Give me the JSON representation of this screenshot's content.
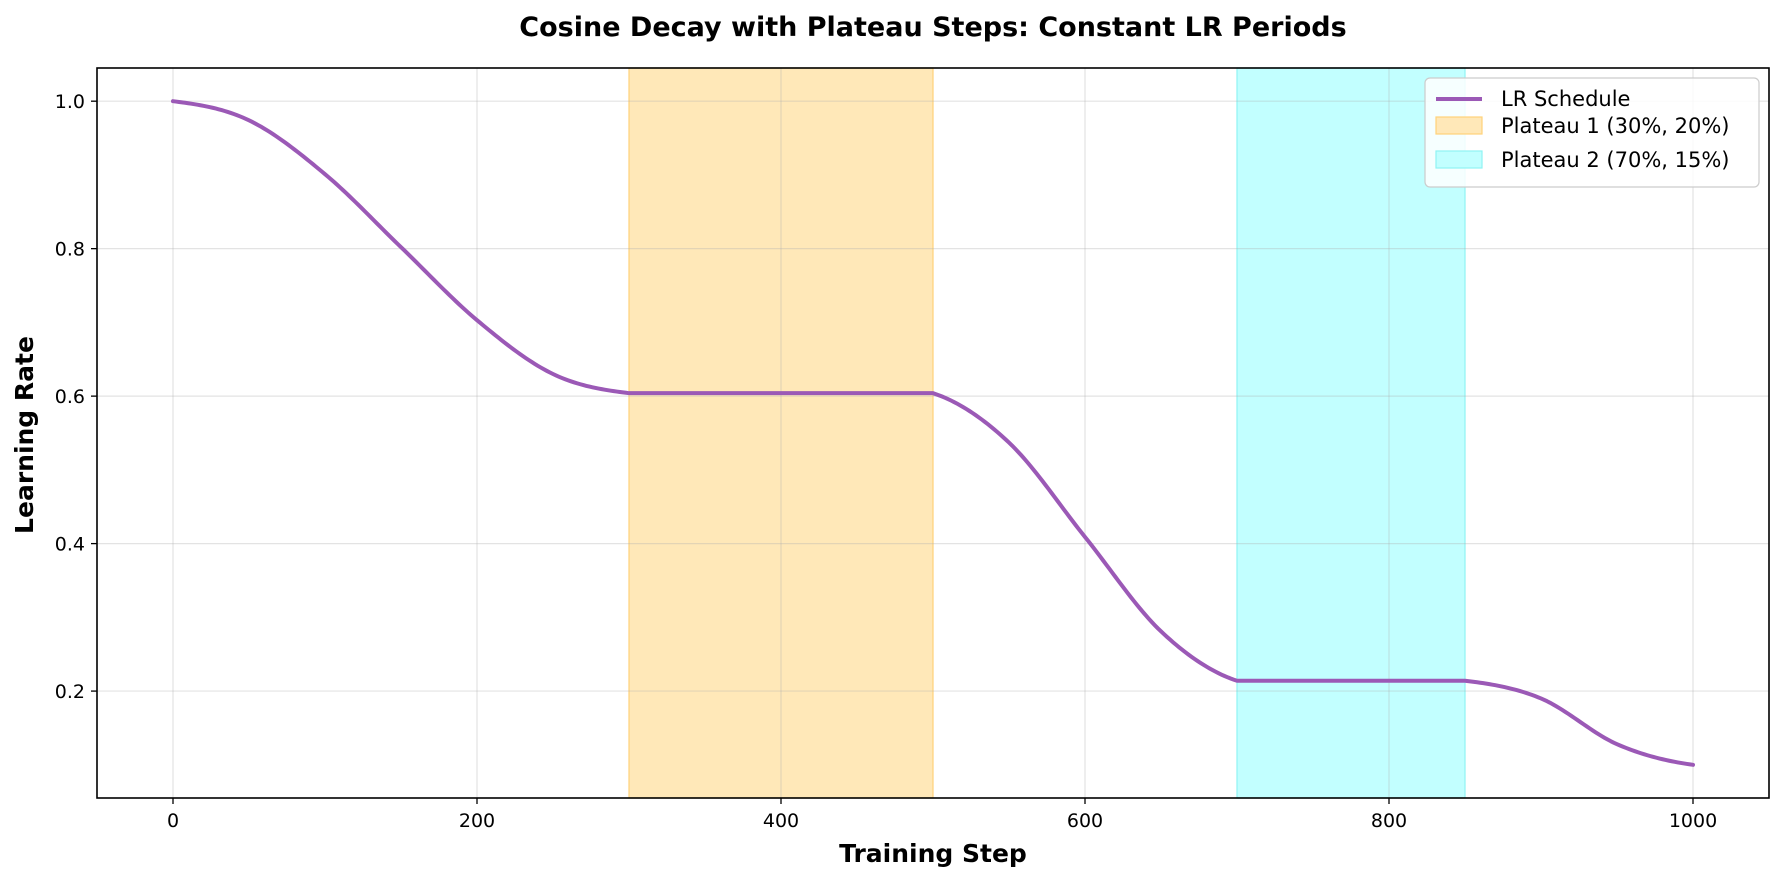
{
  "chart_data": {
    "type": "line",
    "title": "Cosine Decay with Plateau Steps: Constant LR Periods",
    "xlabel": "Training Step",
    "ylabel": "Learning Rate",
    "xlim": [
      -50,
      1050
    ],
    "ylim": [
      0.055,
      1.045
    ],
    "xticks": [
      0,
      200,
      400,
      600,
      800,
      1000
    ],
    "yticks": [
      0.2,
      0.4,
      0.6,
      0.8,
      1.0
    ],
    "xtick_labels": [
      "0",
      "200",
      "400",
      "600",
      "800",
      "1000"
    ],
    "ytick_labels": [
      "0.2",
      "0.4",
      "0.6",
      "0.8",
      "1.0"
    ],
    "grid": true,
    "legend_position": "top-right",
    "series": [
      {
        "name": "LR Schedule",
        "color": "#9b59b6",
        "x": [
          0,
          50,
          100,
          150,
          200,
          250,
          300,
          350,
          400,
          450,
          500,
          550,
          600,
          650,
          700,
          750,
          800,
          850,
          900,
          950,
          1000
        ],
        "y": [
          1.0,
          0.974,
          0.901,
          0.802,
          0.703,
          0.63,
          0.604,
          0.604,
          0.604,
          0.604,
          0.604,
          0.537,
          0.409,
          0.281,
          0.214,
          0.214,
          0.214,
          0.214,
          0.19,
          0.128,
          0.1
        ]
      }
    ],
    "bands": [
      {
        "name": "Plateau 1 (30%, 20%)",
        "x_start": 300,
        "x_end": 500,
        "color": "#ffe8b8",
        "edge": "#ffd27a"
      },
      {
        "name": "Plateau 2 (70%, 15%)",
        "x_start": 700,
        "x_end": 850,
        "color": "#c2ffff",
        "edge": "#8ff3f3"
      }
    ]
  }
}
